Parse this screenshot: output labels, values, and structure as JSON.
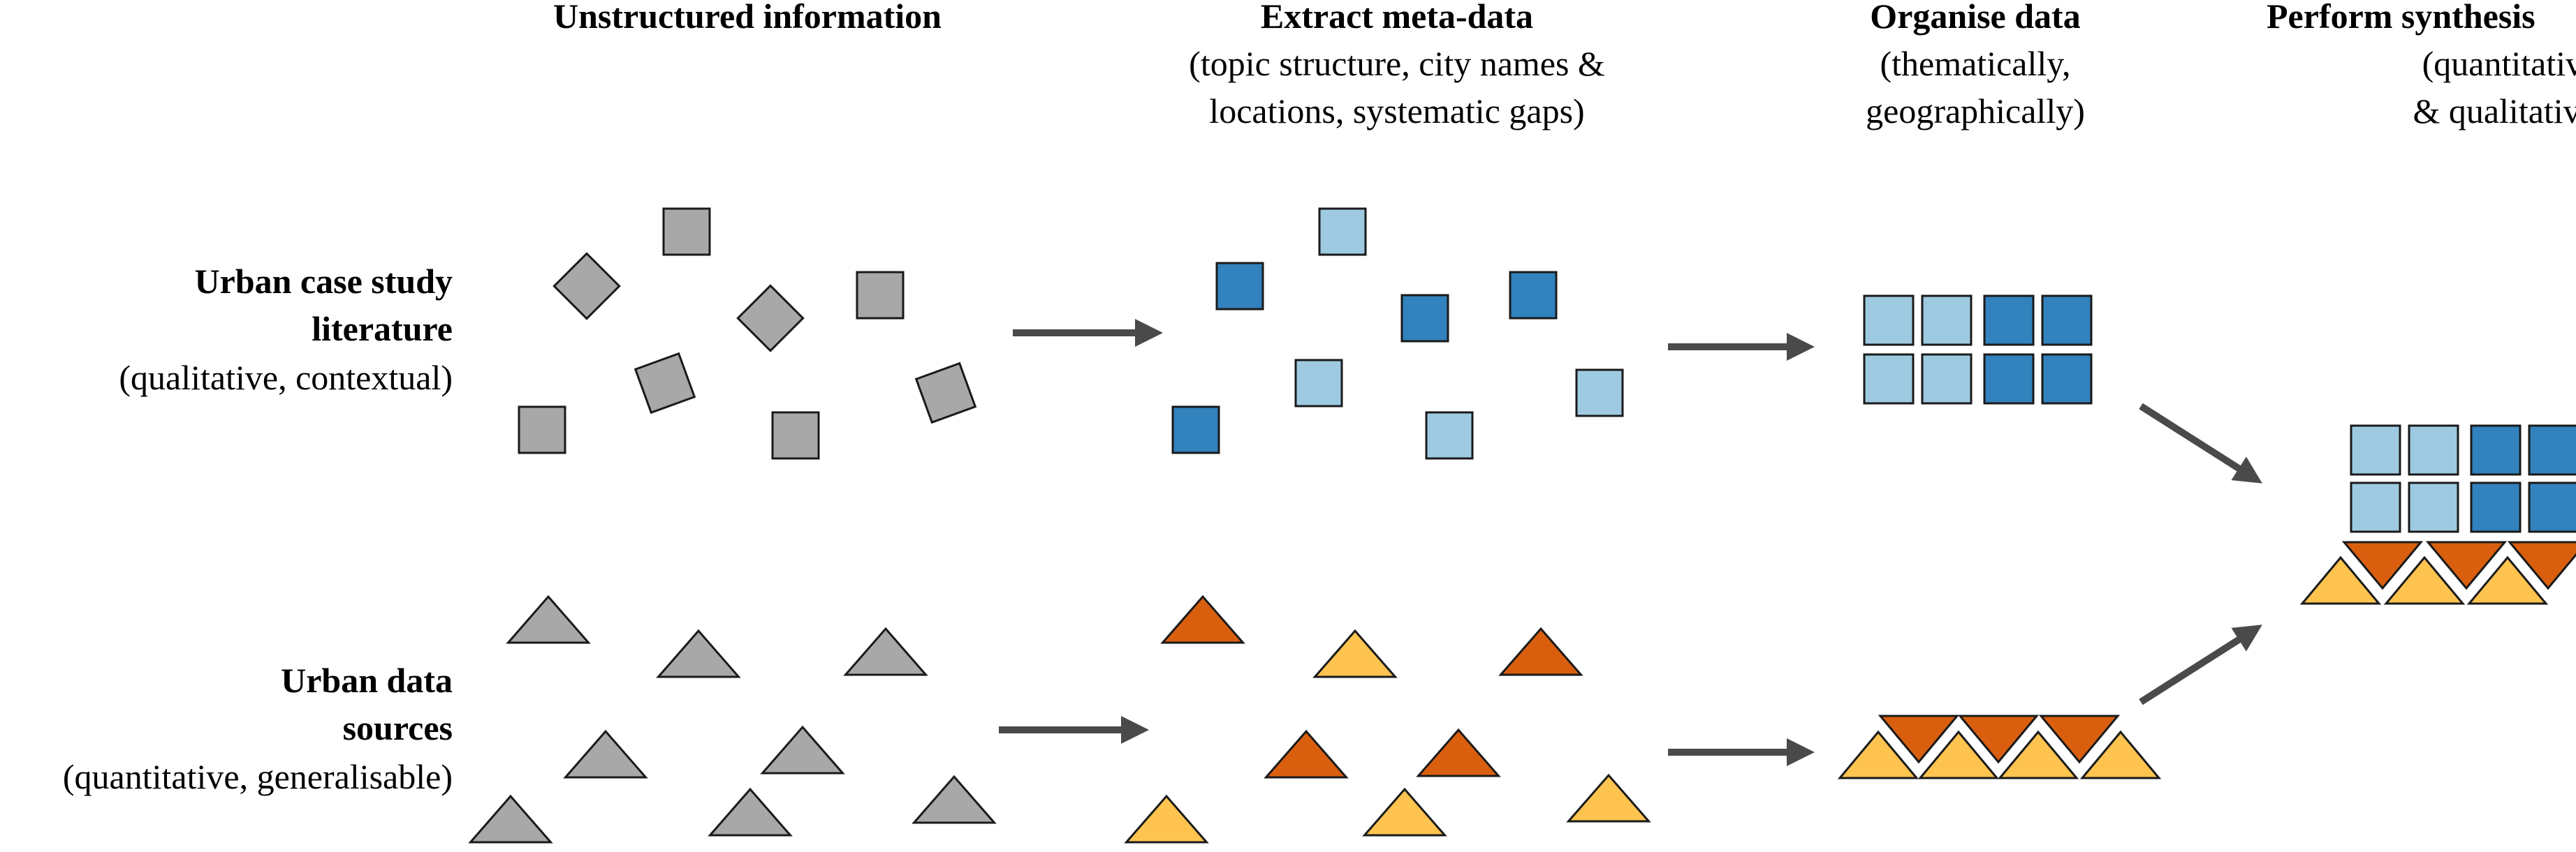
{
  "stages": [
    {
      "title": "Unstructured information",
      "subtitle_lines": []
    },
    {
      "title": "Extract meta-data",
      "subtitle_lines": [
        "(topic structure, city names &",
        "locations, systematic gaps)"
      ]
    },
    {
      "title": "Organise data",
      "subtitle_lines": [
        "(thematically,",
        "geographically)"
      ]
    },
    {
      "title": "Perform synthesis",
      "subtitle_lines": [
        "(quantitative",
        "& qualitative)"
      ]
    }
  ],
  "rows": [
    {
      "title_lines": [
        "Urban case study",
        "literature"
      ],
      "subtitle": "(qualitative, contextual)"
    },
    {
      "title_lines": [
        "Urban data"
      ],
      "title_tail": "sources",
      "subtitle": "(quantitative, generalisable)"
    }
  ],
  "colors": {
    "gray": "#a8a8a8",
    "light_blue": "#9ecae1",
    "dark_blue": "#3182bd",
    "dark_orange": "#d95f0e",
    "light_orange": "#fec44f",
    "arrow": "#4a4a4a",
    "stroke": "#1a1a1a"
  }
}
